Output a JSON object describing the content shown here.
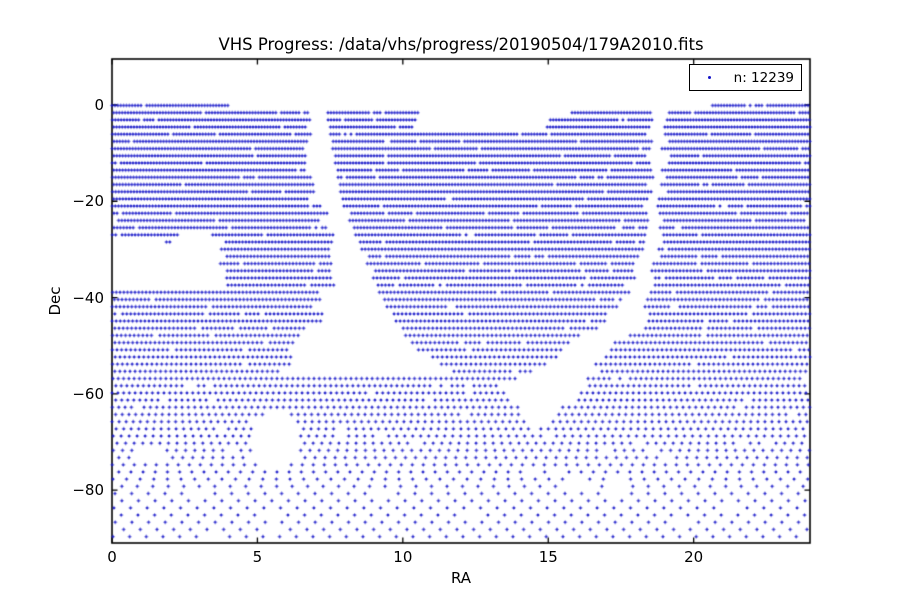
{
  "chart_data": {
    "type": "scatter",
    "title": "VHS Progress: /data/vhs/progress/20190504/179A2010.fits",
    "xlabel": "RA",
    "ylabel": "Dec",
    "xlim": [
      0,
      24
    ],
    "ylim": [
      -91.0,
      9.56
    ],
    "xticks": {
      "values": [
        0,
        5,
        10,
        15,
        20
      ],
      "labels": [
        "0",
        "5",
        "10",
        "15",
        "20"
      ]
    },
    "yticks": {
      "values": [
        0,
        -20,
        -40,
        -60,
        -80
      ],
      "labels": [
        "0",
        "−20",
        "−40",
        "−60",
        "−80"
      ]
    },
    "legend": {
      "label": "n: 12239",
      "position": "upper-right"
    },
    "n_points": 12239,
    "marker_color": "#1414c8",
    "grid": false,
    "coverage_model": {
      "description": "Sky-coverage scatter: horizontal rows of survey tile centres. RA in hours (0-24), Dec in degrees. Rows every ~1.49 deg from -0.1 down to -89.7; tile RA step 0.0995h/cos(dec) capped at |dec|=80. Covered RA intervals per row are bounded by piecewise-linear edges below; white holes subtracted.",
      "row0_dec": -0.1,
      "row_spacing_deg": 1.493,
      "n_rows": 61,
      "tile_step_hours": 0.0995,
      "cos_cap_deg": 80,
      "row0_segments": [
        [
          0,
          4.05
        ],
        [
          20.65,
          24
        ]
      ],
      "left_block_right_edge": [
        [
          -1.2,
          6.78
        ],
        [
          -10,
          6.6
        ],
        [
          -16,
          6.7
        ],
        [
          -21,
          7.1
        ],
        [
          -26.3,
          7.55
        ]
      ],
      "left_void_row_a": [
        [
          0,
          2.3
        ],
        [
          3.45,
          7.6
        ]
      ],
      "left_void_row_b": [
        [
          1.8,
          2.05
        ],
        [
          3.85,
          7.6
        ]
      ],
      "left_subblock": [
        3.82,
        7.62
      ],
      "left_taper_edge": [
        [
          -37.9,
          7.35
        ],
        [
          -46,
          6.9
        ],
        [
          -51,
          6.35
        ],
        [
          -56.6,
          6.0
        ]
      ],
      "mid_left_edge": [
        [
          -1.2,
          7.36
        ],
        [
          -20,
          7.9
        ],
        [
          -26,
          8.3
        ],
        [
          -40,
          9.25
        ],
        [
          -50,
          10.3
        ],
        [
          -54,
          11.35
        ],
        [
          -58.45,
          12.4
        ]
      ],
      "mid_right_edge": [
        [
          -1.2,
          18.5
        ],
        [
          -25,
          18.4
        ],
        [
          -40,
          17.6
        ],
        [
          -46,
          16.8
        ],
        [
          -50,
          15.75
        ],
        [
          -54,
          14.8
        ],
        [
          -58.45,
          13.45
        ]
      ],
      "notch_left_edge": [
        [
          -1.2,
          10.55
        ],
        [
          -6.1,
          10.25
        ]
      ],
      "notch_right_edge": [
        [
          -1.2,
          15.95
        ],
        [
          -3.1,
          15.05
        ],
        [
          -4.7,
          14.9
        ],
        [
          -6.15,
          10.2
        ]
      ],
      "right_block_left_edge": [
        [
          -1.3,
          19.1
        ],
        [
          -25,
          18.9
        ],
        [
          -40,
          18.5
        ],
        [
          -46,
          18.2
        ],
        [
          -50,
          17.2
        ],
        [
          -58,
          16.35
        ],
        [
          -62,
          15.7
        ],
        [
          -67.6,
          14.72
        ]
      ],
      "v_floor_left_edge": [
        [
          -58.5,
          13.45
        ],
        [
          -63,
          13.9
        ],
        [
          -67.6,
          14.6
        ]
      ],
      "merge_left_below": -56.6,
      "apex_below": -58.5,
      "full_below": -67.7,
      "ellipse_hole": {
        "cx": 5.62,
        "cdec": -69.6,
        "rx": 0.83,
        "ry": 5.4,
        "exponent": 4
      },
      "small_hole": {
        "ra": [
          0.85,
          1.85
        ],
        "dec": [
          -71.2,
          -74.1
        ]
      },
      "dropout_fraction": 0.035
    }
  }
}
